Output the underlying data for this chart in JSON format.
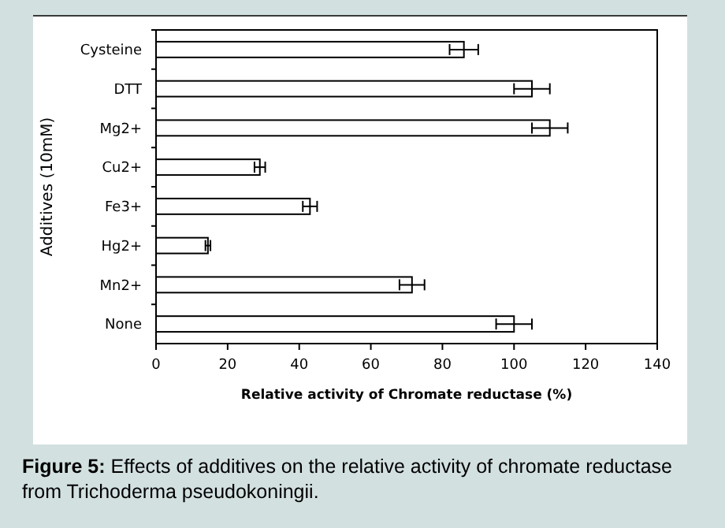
{
  "chart_data": {
    "type": "bar",
    "orientation": "horizontal",
    "xlabel": "Relative activity of Chromate reductase (%)",
    "ylabel": "Additives (10mM)",
    "categories": [
      "Cysteine",
      "DTT",
      "Mg2+",
      "Cu2+",
      "Fe3+",
      "Hg2+",
      "Mn2+",
      "None"
    ],
    "values": [
      86,
      105,
      110,
      29,
      43,
      14.5,
      71.5,
      100
    ],
    "errors": [
      4,
      5,
      5,
      1.5,
      2,
      0.7,
      3.5,
      5
    ],
    "color": "#ffffff",
    "xlim": [
      0,
      140
    ],
    "xticks": [
      0,
      20,
      40,
      60,
      80,
      100,
      120,
      140
    ],
    "grid": false,
    "annotations": [
      "Figure 5: Effects of additives on the relative activity of chromate reductase from Trichoderma pseudokoningii."
    ]
  }
}
